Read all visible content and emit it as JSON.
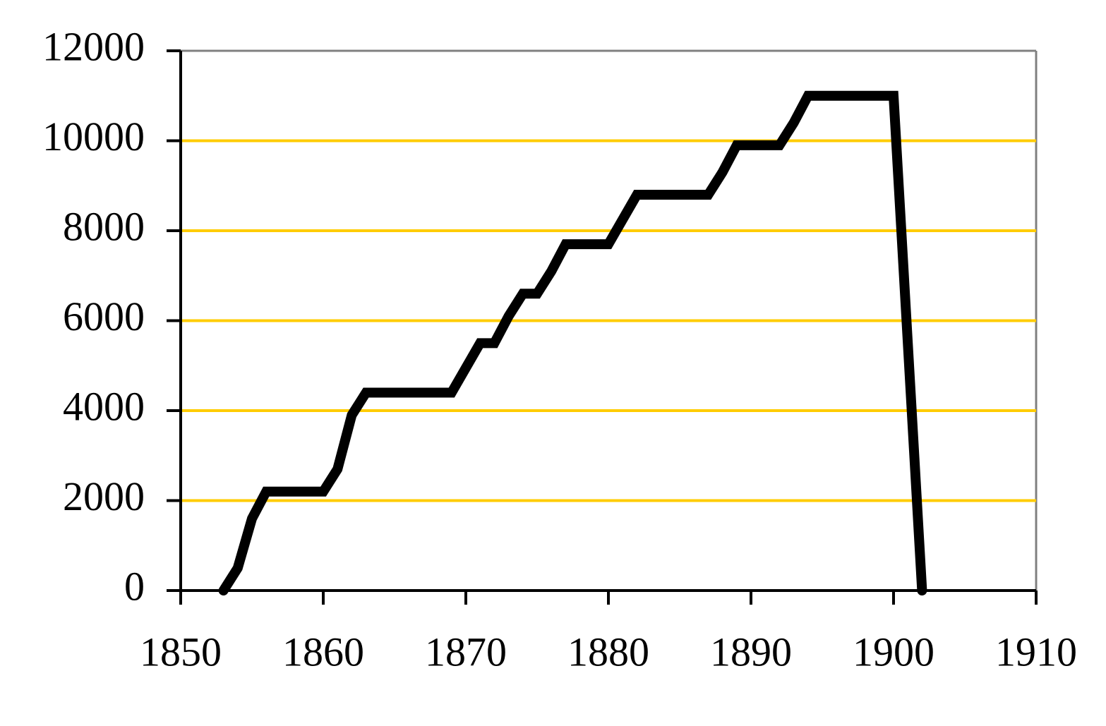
{
  "chart_data": {
    "type": "line",
    "x": [
      1853,
      1854,
      1855,
      1856,
      1860,
      1861,
      1862,
      1863,
      1869,
      1871,
      1872,
      1873,
      1874,
      1875,
      1876,
      1877,
      1880,
      1882,
      1887,
      1888,
      1889,
      1892,
      1893,
      1894,
      1900,
      1902
    ],
    "values": [
      0,
      500,
      1600,
      2200,
      2200,
      2700,
      3900,
      4400,
      4400,
      5500,
      5500,
      6100,
      6600,
      6600,
      7100,
      7700,
      7700,
      8800,
      8800,
      9300,
      9900,
      9900,
      10400,
      11000,
      11000,
      0
    ],
    "color": "#000000",
    "grid_color": "#ffcc00",
    "grid": true,
    "xlim": [
      1850,
      1910
    ],
    "xticks": [
      1850,
      1860,
      1870,
      1880,
      1890,
      1900,
      1910
    ],
    "ylim": [
      0,
      12000
    ],
    "yticks": [
      0,
      2000,
      4000,
      6000,
      8000,
      10000,
      12000
    ]
  }
}
